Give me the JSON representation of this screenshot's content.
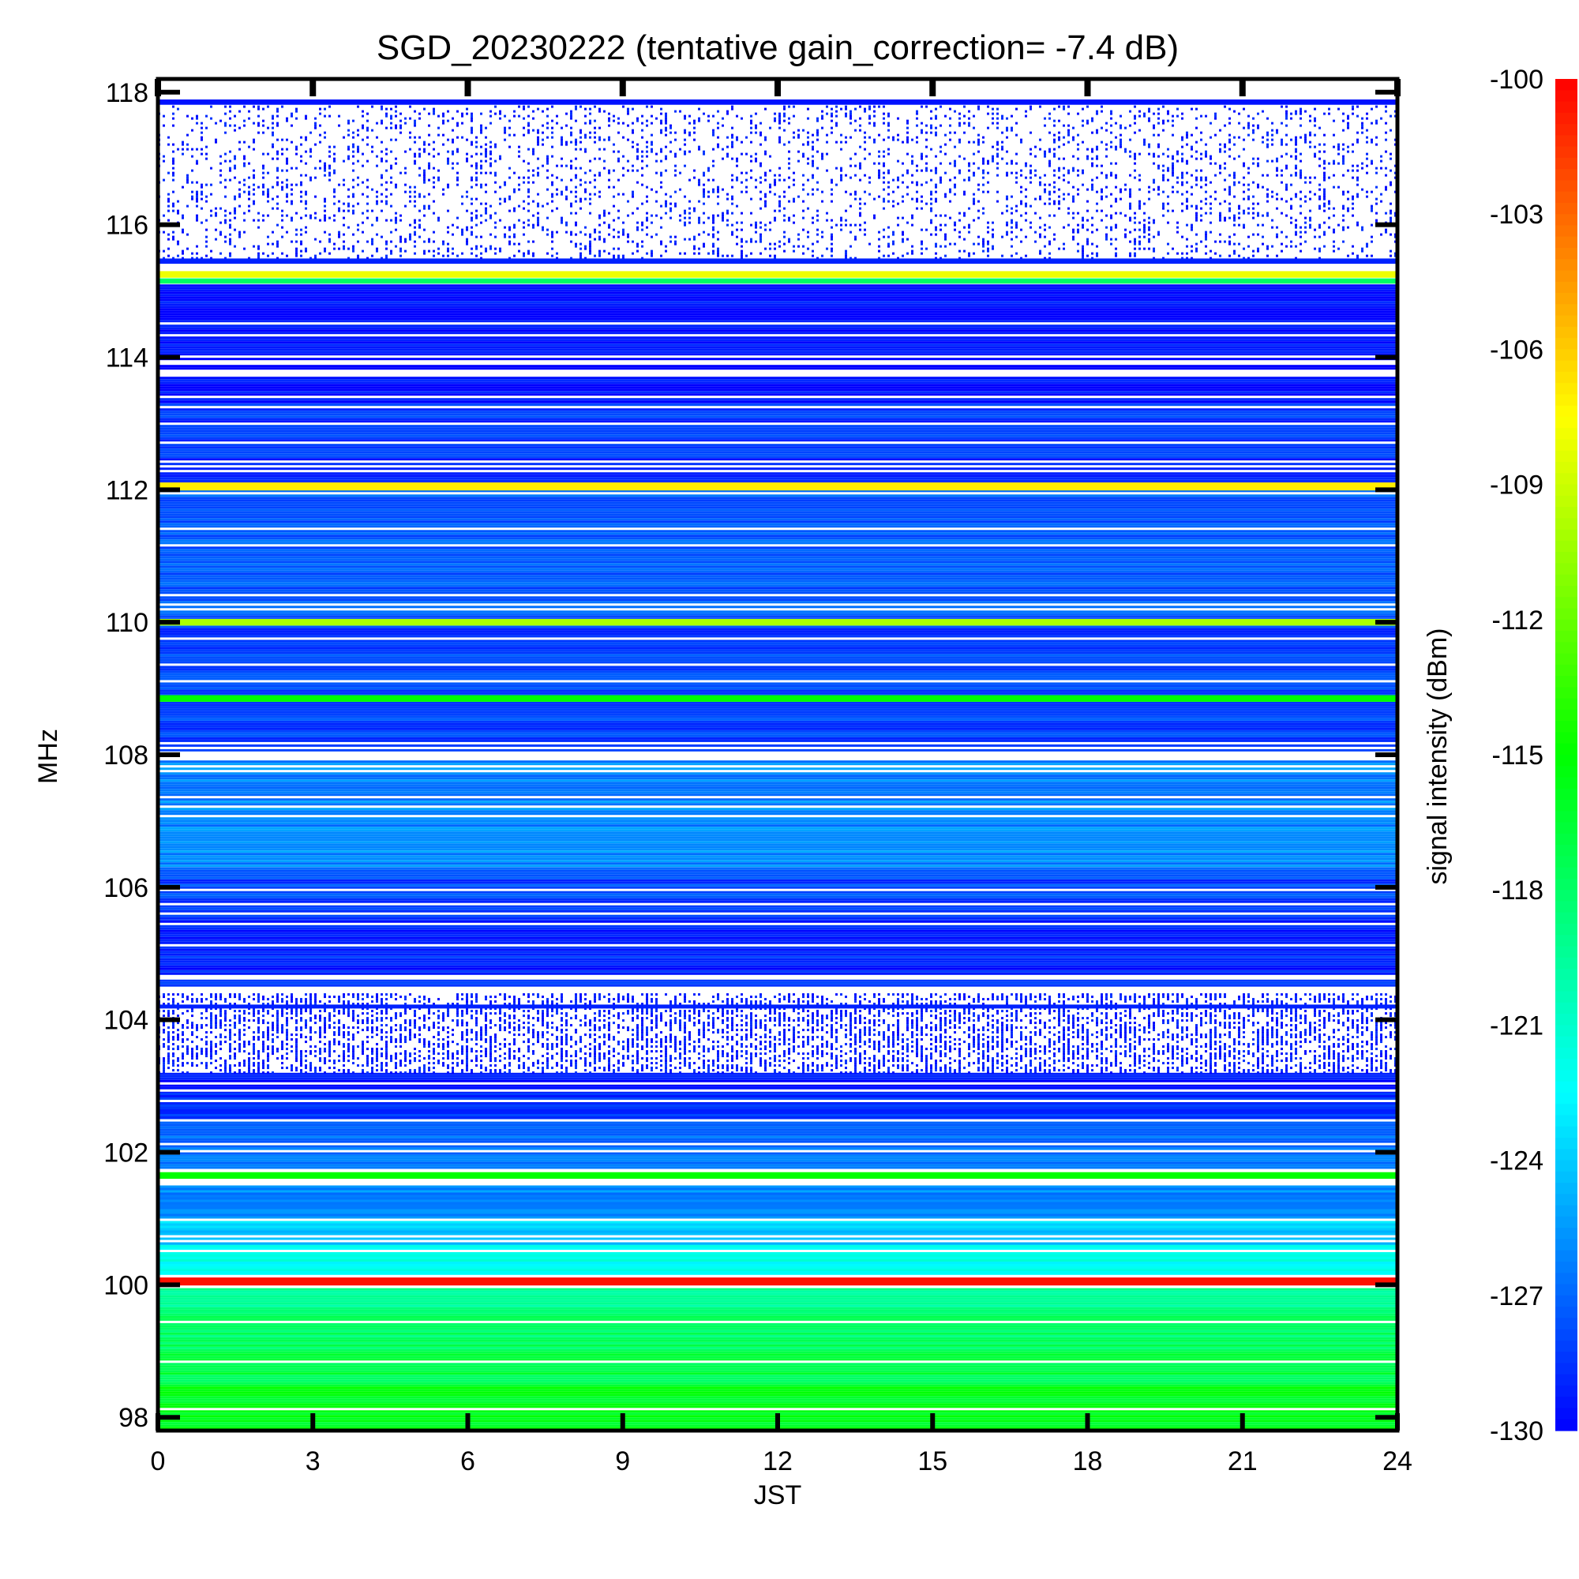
{
  "chart_data": {
    "type": "heatmap",
    "title": "SGD_20230222 (tentative gain_correction= -7.4 dB)",
    "xlabel": "JST",
    "ylabel": "MHz",
    "colorbar_label": "signal intensity (dBm)",
    "xlim": [
      0,
      24
    ],
    "ylim": [
      97.8,
      118.2
    ],
    "x_ticks": [
      0,
      3,
      6,
      9,
      12,
      15,
      18,
      21,
      24
    ],
    "x_tick_labels": [
      "0",
      "3",
      "6",
      "9",
      "12",
      "15",
      "18",
      "21",
      "24"
    ],
    "y_ticks": [
      98,
      100,
      102,
      104,
      106,
      108,
      110,
      112,
      114,
      116,
      118
    ],
    "y_tick_labels": [
      "98",
      "100",
      "102",
      "104",
      "106",
      "108",
      "110",
      "112",
      "114",
      "116",
      "118"
    ],
    "color_range": [
      -130,
      -100
    ],
    "colorbar_ticks": [
      -100,
      -103,
      -106,
      -109,
      -112,
      -115,
      -118,
      -121,
      -124,
      -127,
      -130
    ],
    "colorbar_tick_labels": [
      "-100",
      "-103",
      "-106",
      "-109",
      "-112",
      "-115",
      "-118",
      "-121",
      "-124",
      "-127",
      "-130"
    ],
    "colormap": [
      "#0000ff",
      "#0080ff",
      "#00ffff",
      "#00ff80",
      "#00ff00",
      "#80ff00",
      "#ffff00",
      "#ff8000",
      "#ff0000"
    ],
    "background_color": "#ffffff",
    "bands": [
      {
        "from": 97.8,
        "to": 98.5,
        "level": -116
      },
      {
        "from": 98.5,
        "to": 99.0,
        "level": -117
      },
      {
        "from": 99.0,
        "to": 99.6,
        "level": -118
      },
      {
        "from": 99.6,
        "to": 99.95,
        "level": -119
      },
      {
        "from": 100.15,
        "to": 100.6,
        "level": -122
      },
      {
        "from": 100.6,
        "to": 101.0,
        "level": -124
      },
      {
        "from": 101.0,
        "to": 101.5,
        "level": -126
      },
      {
        "from": 101.75,
        "to": 102.5,
        "level": -127
      },
      {
        "from": 102.5,
        "to": 102.9,
        "level": -128.5
      },
      {
        "from": 102.9,
        "to": 103.2,
        "level": -129.5
      },
      {
        "from": 104.5,
        "to": 105.5,
        "level": -129
      },
      {
        "from": 105.5,
        "to": 106.3,
        "level": -128
      },
      {
        "from": 106.3,
        "to": 107.95,
        "level": -126
      },
      {
        "from": 108.05,
        "to": 108.8,
        "level": -128
      },
      {
        "from": 108.9,
        "to": 109.95,
        "level": -128
      },
      {
        "from": 110.05,
        "to": 112.0,
        "level": -127.5
      },
      {
        "from": 112.1,
        "to": 113.3,
        "level": -128.5
      },
      {
        "from": 113.3,
        "to": 115.1,
        "level": -129.5
      }
    ],
    "sparse_regions": [
      {
        "from": 103.2,
        "to": 104.4,
        "level": -129.5,
        "density": 0.55
      },
      {
        "from": 115.5,
        "to": 117.8,
        "level": -129.5,
        "density": 0.22
      }
    ],
    "lines": [
      {
        "freq": 100.05,
        "level": -100.5,
        "width": 0.12
      },
      {
        "freq": 101.65,
        "level": -115,
        "width": 0.1
      },
      {
        "freq": 104.2,
        "level": -129,
        "width": 0.06
      },
      {
        "freq": 108.0,
        "level": null,
        "width": 0.05
      },
      {
        "freq": 108.85,
        "level": -115,
        "width": 0.1
      },
      {
        "freq": 110.0,
        "level": -110,
        "width": 0.1
      },
      {
        "freq": 112.05,
        "level": -107,
        "width": 0.12
      },
      {
        "freq": 115.15,
        "level": -118,
        "width": 0.08
      },
      {
        "freq": 115.25,
        "level": -108,
        "width": 0.1
      },
      {
        "freq": 115.45,
        "level": -129,
        "width": 0.08
      },
      {
        "freq": 117.85,
        "level": -129.5,
        "width": 0.08
      }
    ]
  }
}
